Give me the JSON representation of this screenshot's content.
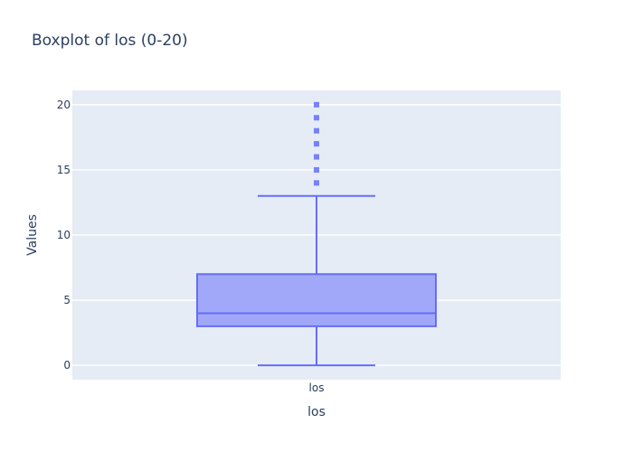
{
  "chart_data": {
    "type": "box",
    "title": "Boxplot of los (0-20)",
    "xlabel": "los",
    "ylabel": "Values",
    "categories": [
      "los"
    ],
    "ylim": [
      -1.1,
      21.1
    ],
    "yticks": [
      0,
      5,
      10,
      15,
      20
    ],
    "grid": true,
    "colors": {
      "plot_bg": "#e5ecf6",
      "grid": "#ffffff",
      "box_line": "#636efa",
      "box_fill": "#a2a8f9",
      "text": "#2a3f5f"
    },
    "box": {
      "whisker_low": 0,
      "q1": 3,
      "median": 4,
      "q3": 7,
      "whisker_high": 13
    },
    "outliers": [
      14,
      15,
      16,
      17,
      18,
      19,
      20
    ]
  }
}
